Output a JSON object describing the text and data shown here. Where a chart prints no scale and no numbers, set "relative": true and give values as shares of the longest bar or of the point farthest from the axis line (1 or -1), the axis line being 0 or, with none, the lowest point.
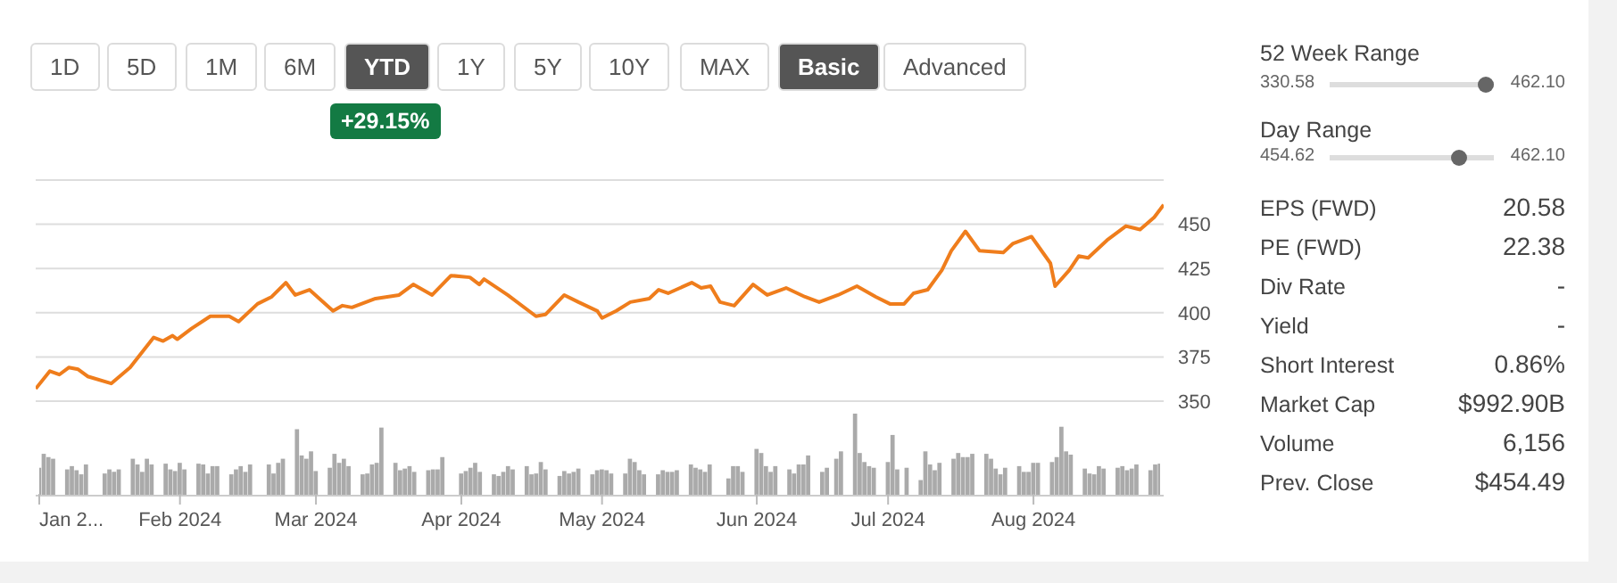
{
  "chart_data": [
    {
      "type": "other",
      "annotations": [
        "1D",
        "5D",
        "1M",
        "6M",
        "YTD",
        "1Y",
        "5Y",
        "10Y",
        "MAX",
        "Basic",
        "Advanced",
        "+29.15%"
      ]
    },
    {
      "type": "line",
      "color": "#ef7d1c",
      "grid": "y",
      "tick_labels": "y",
      "xlim": [
        "2024-01-02",
        "2024-08-28"
      ],
      "ylim": [
        350,
        475
      ],
      "yticks": [
        350,
        375,
        400,
        425,
        450,
        {
          "value": 475,
          "label": null
        }
      ],
      "x": [
        "2024-01-02",
        "2024-01-05",
        "2024-01-07",
        "2024-01-09",
        "2024-01-11",
        "2024-01-13",
        "2024-01-18",
        "2024-01-22",
        "2024-01-27",
        "2024-01-29",
        "2024-01-31",
        "2024-02-01",
        "2024-02-04",
        "2024-02-08",
        "2024-02-12",
        "2024-02-14",
        "2024-02-18",
        "2024-02-21",
        "2024-02-24",
        "2024-02-26",
        "2024-02-29",
        "2024-03-05",
        "2024-03-07",
        "2024-03-09",
        "2024-03-14",
        "2024-03-19",
        "2024-03-22",
        "2024-03-26",
        "2024-03-30",
        "2024-04-03",
        "2024-04-05",
        "2024-04-06",
        "2024-04-11",
        "2024-04-17",
        "2024-04-19",
        "2024-04-23",
        "2024-04-26",
        "2024-04-30",
        "2024-05-01",
        "2024-05-04",
        "2024-05-07",
        "2024-05-11",
        "2024-05-13",
        "2024-05-15",
        "2024-05-20",
        "2024-05-22",
        "2024-05-24",
        "2024-05-26",
        "2024-05-29",
        "2024-06-02",
        "2024-06-05",
        "2024-06-09",
        "2024-06-13",
        "2024-06-16",
        "2024-06-20",
        "2024-06-24",
        "2024-06-28",
        "2024-07-01",
        "2024-07-04",
        "2024-07-06",
        "2024-07-09",
        "2024-07-12",
        "2024-07-14",
        "2024-07-17",
        "2024-07-20",
        "2024-07-25",
        "2024-07-27",
        "2024-07-31",
        "2024-08-04",
        "2024-08-05",
        "2024-08-08",
        "2024-08-10",
        "2024-08-12",
        "2024-08-16",
        "2024-08-20",
        "2024-08-23",
        "2024-08-26",
        "2024-08-28"
      ],
      "values": [
        357,
        367,
        365,
        369,
        368,
        364,
        360,
        369,
        386,
        384,
        387,
        385,
        391,
        398,
        398,
        395,
        405,
        409,
        417,
        410,
        413,
        401,
        404,
        403,
        408,
        410,
        416,
        410,
        421,
        420,
        416,
        419,
        410,
        398,
        399,
        410,
        406,
        401,
        397,
        401,
        406,
        408,
        413,
        411,
        417,
        414,
        415,
        406,
        404,
        416,
        410,
        414,
        409,
        406,
        410,
        415,
        409,
        405,
        405,
        411,
        413,
        424,
        435,
        446,
        435,
        434,
        439,
        443,
        428,
        415,
        424,
        432,
        431,
        441,
        449,
        447,
        454,
        461
      ]
    },
    {
      "type": "bar",
      "relative": true,
      "color": "#aaaaaa",
      "xlim": [
        "2024-01-02",
        "2024-08-28"
      ],
      "xticks": [
        {
          "value": "2024-01-02",
          "label": "Jan 2..."
        },
        {
          "value": "2024-02-01",
          "label": "Feb 2024"
        },
        {
          "value": "2024-03-01",
          "label": "Mar 2024"
        },
        {
          "value": "2024-04-01",
          "label": "Apr 2024"
        },
        {
          "value": "2024-05-01",
          "label": "May 2024"
        },
        {
          "value": "2024-06-03",
          "label": "Jun 2024"
        },
        {
          "value": "2024-07-01",
          "label": "Jul 2024"
        },
        {
          "value": "2024-08-01",
          "label": "Aug 2024"
        }
      ],
      "x": [
        "2024-01-02",
        "2024-01-03",
        "2024-01-04",
        "2024-01-05",
        "2024-01-08",
        "2024-01-09",
        "2024-01-10",
        "2024-01-11",
        "2024-01-12",
        "2024-01-16",
        "2024-01-17",
        "2024-01-18",
        "2024-01-19",
        "2024-01-22",
        "2024-01-23",
        "2024-01-24",
        "2024-01-25",
        "2024-01-26",
        "2024-01-29",
        "2024-01-30",
        "2024-01-31",
        "2024-02-01",
        "2024-02-02",
        "2024-02-05",
        "2024-02-06",
        "2024-02-07",
        "2024-02-08",
        "2024-02-09",
        "2024-02-12",
        "2024-02-13",
        "2024-02-14",
        "2024-02-15",
        "2024-02-16",
        "2024-02-20",
        "2024-02-21",
        "2024-02-22",
        "2024-02-23",
        "2024-02-26",
        "2024-02-27",
        "2024-02-28",
        "2024-02-29",
        "2024-03-01",
        "2024-03-04",
        "2024-03-05",
        "2024-03-06",
        "2024-03-07",
        "2024-03-08",
        "2024-03-11",
        "2024-03-12",
        "2024-03-13",
        "2024-03-14",
        "2024-03-15",
        "2024-03-18",
        "2024-03-19",
        "2024-03-20",
        "2024-03-21",
        "2024-03-22",
        "2024-03-25",
        "2024-03-26",
        "2024-03-27",
        "2024-03-28",
        "2024-04-01",
        "2024-04-02",
        "2024-04-03",
        "2024-04-04",
        "2024-04-05",
        "2024-04-08",
        "2024-04-09",
        "2024-04-10",
        "2024-04-11",
        "2024-04-12",
        "2024-04-15",
        "2024-04-16",
        "2024-04-17",
        "2024-04-18",
        "2024-04-19",
        "2024-04-22",
        "2024-04-23",
        "2024-04-24",
        "2024-04-25",
        "2024-04-26",
        "2024-04-29",
        "2024-04-30",
        "2024-05-01",
        "2024-05-02",
        "2024-05-03",
        "2024-05-06",
        "2024-05-07",
        "2024-05-08",
        "2024-05-09",
        "2024-05-10",
        "2024-05-13",
        "2024-05-14",
        "2024-05-15",
        "2024-05-16",
        "2024-05-17",
        "2024-05-20",
        "2024-05-21",
        "2024-05-22",
        "2024-05-23",
        "2024-05-24",
        "2024-05-28",
        "2024-05-29",
        "2024-05-30",
        "2024-05-31",
        "2024-06-03",
        "2024-06-04",
        "2024-06-05",
        "2024-06-06",
        "2024-06-07",
        "2024-06-10",
        "2024-06-11",
        "2024-06-12",
        "2024-06-13",
        "2024-06-14",
        "2024-06-17",
        "2024-06-18",
        "2024-06-20",
        "2024-06-21",
        "2024-06-24",
        "2024-06-25",
        "2024-06-26",
        "2024-06-27",
        "2024-06-28",
        "2024-07-01",
        "2024-07-02",
        "2024-07-03",
        "2024-07-05",
        "2024-07-08",
        "2024-07-09",
        "2024-07-10",
        "2024-07-11",
        "2024-07-12",
        "2024-07-15",
        "2024-07-16",
        "2024-07-17",
        "2024-07-18",
        "2024-07-19",
        "2024-07-22",
        "2024-07-23",
        "2024-07-24",
        "2024-07-25",
        "2024-07-26",
        "2024-07-29",
        "2024-07-30",
        "2024-07-31",
        "2024-08-01",
        "2024-08-02",
        "2024-08-05",
        "2024-08-06",
        "2024-08-07",
        "2024-08-08",
        "2024-08-09",
        "2024-08-12",
        "2024-08-13",
        "2024-08-14",
        "2024-08-15",
        "2024-08-16",
        "2024-08-19",
        "2024-08-20",
        "2024-08-21",
        "2024-08-22",
        "2024-08-23",
        "2024-08-26",
        "2024-08-27",
        "2024-08-28"
      ],
      "values": [
        0.34,
        0.51,
        0.47,
        0.45,
        0.32,
        0.36,
        0.31,
        0.26,
        0.38,
        0.27,
        0.32,
        0.29,
        0.32,
        0.45,
        0.38,
        0.29,
        0.45,
        0.38,
        0.39,
        0.32,
        0.3,
        0.4,
        0.32,
        0.39,
        0.38,
        0.27,
        0.36,
        0.36,
        0.26,
        0.32,
        0.36,
        0.29,
        0.38,
        0.38,
        0.27,
        0.4,
        0.45,
        0.81,
        0.49,
        0.45,
        0.54,
        0.3,
        0.34,
        0.51,
        0.4,
        0.45,
        0.36,
        0.26,
        0.27,
        0.38,
        0.4,
        0.83,
        0.4,
        0.31,
        0.33,
        0.36,
        0.29,
        0.31,
        0.32,
        0.32,
        0.47,
        0.27,
        0.3,
        0.34,
        0.4,
        0.29,
        0.26,
        0.24,
        0.29,
        0.36,
        0.32,
        0.36,
        0.26,
        0.27,
        0.41,
        0.32,
        0.24,
        0.3,
        0.27,
        0.29,
        0.33,
        0.26,
        0.31,
        0.32,
        0.31,
        0.27,
        0.27,
        0.45,
        0.41,
        0.31,
        0.26,
        0.26,
        0.31,
        0.29,
        0.29,
        0.31,
        0.38,
        0.34,
        0.32,
        0.29,
        0.38,
        0.21,
        0.36,
        0.36,
        0.29,
        0.57,
        0.52,
        0.36,
        0.29,
        0.36,
        0.32,
        0.27,
        0.38,
        0.38,
        0.49,
        0.29,
        0.34,
        0.45,
        0.54,
        1,
        0.52,
        0.41,
        0.36,
        0.34,
        0.41,
        0.74,
        0.32,
        0.34,
        0.19,
        0.54,
        0.38,
        0.31,
        0.4,
        0.45,
        0.52,
        0.47,
        0.47,
        0.51,
        0.51,
        0.45,
        0.33,
        0.26,
        0.34,
        0.36,
        0.29,
        0.29,
        0.4,
        0.4,
        0.41,
        0.47,
        0.84,
        0.54,
        0.5,
        0.33,
        0.27,
        0.26,
        0.36,
        0.33,
        0.34,
        0.36,
        0.31,
        0.33,
        0.38,
        0.31,
        0.38,
        0.39
      ]
    },
    {
      "type": "other",
      "annotations": [
        "52 Week Range",
        "330.58",
        "462.10",
        "Day Range",
        "454.62",
        "462.10",
        "EPS (FWD)",
        "20.58",
        "PE (FWD)",
        "22.38",
        "Div Rate",
        "-",
        "Yield",
        "-",
        "Short Interest",
        "0.86%",
        "Market Cap",
        "$992.90B",
        "Volume",
        "6,156",
        "Prev. Close",
        "$454.49"
      ]
    }
  ]
}
